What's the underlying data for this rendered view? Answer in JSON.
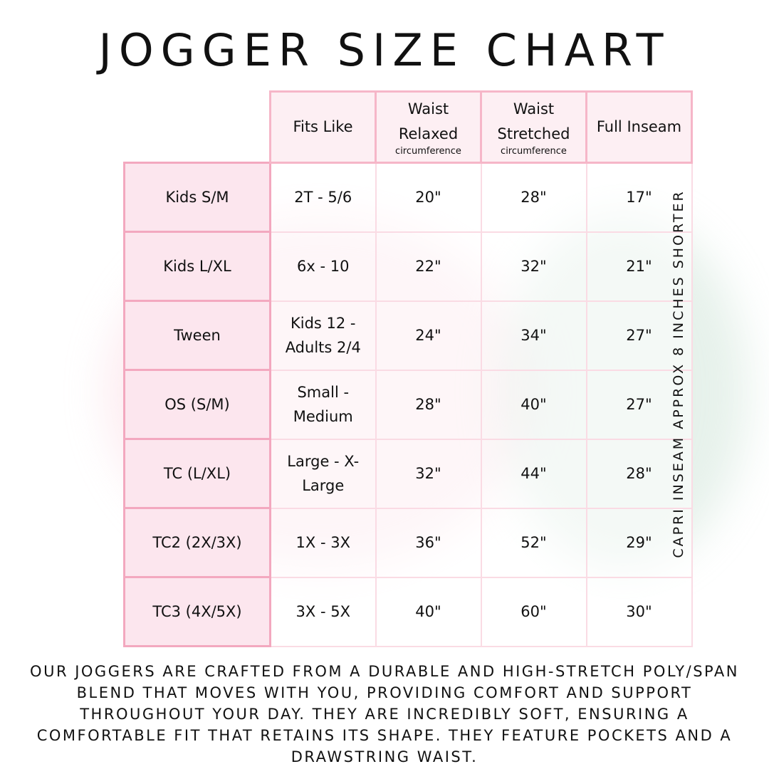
{
  "title": "JOGGER SIZE CHART",
  "headers": [
    {
      "main": "Fits Like",
      "sub": ""
    },
    {
      "main": "Waist Relaxed",
      "sub": "circumference"
    },
    {
      "main": "Waist Stretched",
      "sub": "circumference"
    },
    {
      "main": "Full Inseam",
      "sub": ""
    }
  ],
  "rows": [
    {
      "size": "Kids S/M",
      "fits": "2T - 5/6",
      "relaxed": "20\"",
      "stretched": "28\"",
      "inseam": "17\""
    },
    {
      "size": "Kids L/XL",
      "fits": "6x - 10",
      "relaxed": "22\"",
      "stretched": "32\"",
      "inseam": "21\""
    },
    {
      "size": "Tween",
      "fits": "Kids 12 - Adults 2/4",
      "relaxed": "24\"",
      "stretched": "34\"",
      "inseam": "27\""
    },
    {
      "size": "OS (S/M)",
      "fits": "Small - Medium",
      "relaxed": "28\"",
      "stretched": "40\"",
      "inseam": "27\""
    },
    {
      "size": "TC (L/XL)",
      "fits": "Large - X-Large",
      "relaxed": "32\"",
      "stretched": "44\"",
      "inseam": "28\""
    },
    {
      "size": "TC2 (2X/3X)",
      "fits": "1X - 3X",
      "relaxed": "36\"",
      "stretched": "52\"",
      "inseam": "29\""
    },
    {
      "size": "TC3 (4X/5X)",
      "fits": "3X - 5X",
      "relaxed": "40\"",
      "stretched": "60\"",
      "inseam": "30\""
    }
  ],
  "side_note": "CAPRI INSEAM APPROX 8 INCHES SHORTER",
  "footer": "Our joggers are crafted from a durable and high-stretch poly/span blend that moves with you, providing comfort and support throughout your day. They are incredibly soft, ensuring a comfortable fit that retains its shape. They feature pockets and a drawstring waist.",
  "colors": {
    "header_bg": "#fdeff3",
    "row_label_bg": "#fce6ee",
    "border": "#f3a8bf"
  }
}
